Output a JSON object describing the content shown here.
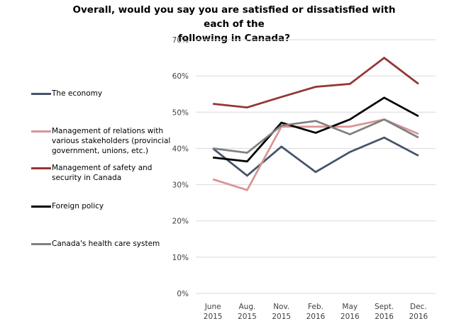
{
  "chart_data": {
    "type": "line",
    "title": "Overall, would you say you are satisfied or dissatisfied with each of the following in Canada?",
    "title_lines": [
      "Overall, would you say you are satisfied or dissatisfied with each of the",
      "following in Canada?"
    ],
    "xlabel": "",
    "ylabel": "",
    "categories": [
      [
        "June",
        "2015"
      ],
      [
        "Aug.",
        "2015"
      ],
      [
        "Nov.",
        "2015"
      ],
      [
        "Feb.",
        "2016"
      ],
      [
        "May",
        "2016"
      ],
      [
        "Sept.",
        "2016"
      ],
      [
        "Dec.",
        "2016"
      ]
    ],
    "ylim": [
      0,
      70
    ],
    "yticks": [
      0,
      10,
      20,
      30,
      40,
      50,
      60,
      70
    ],
    "ytick_labels": [
      "0%",
      "10%",
      "20%",
      "30%",
      "40%",
      "50%",
      "60%",
      "70%"
    ],
    "grid": true,
    "legend_position": "left",
    "series": [
      {
        "name": "The economy",
        "color": "#44546A",
        "values": [
          40,
          32.5,
          40.5,
          33.5,
          39,
          43,
          38
        ]
      },
      {
        "name": "Management of relations with various stakeholders (provincial government, unions, etc.)",
        "color": "#D99594",
        "values": [
          31.5,
          28.5,
          46,
          46,
          46,
          48,
          44
        ]
      },
      {
        "name": "Management of safety and security in Canada",
        "color": "#943634",
        "values": [
          52.3,
          51.3,
          54.2,
          57,
          57.8,
          65,
          57.8
        ]
      },
      {
        "name": "Foreign policy",
        "color": "#000000",
        "values": [
          37.5,
          36.4,
          47.1,
          44.3,
          48,
          54,
          48.9
        ]
      },
      {
        "name": "Canada's health care system",
        "color": "#808080",
        "values": [
          40,
          38.8,
          46.3,
          47.6,
          43.9,
          48,
          43
        ]
      }
    ]
  }
}
